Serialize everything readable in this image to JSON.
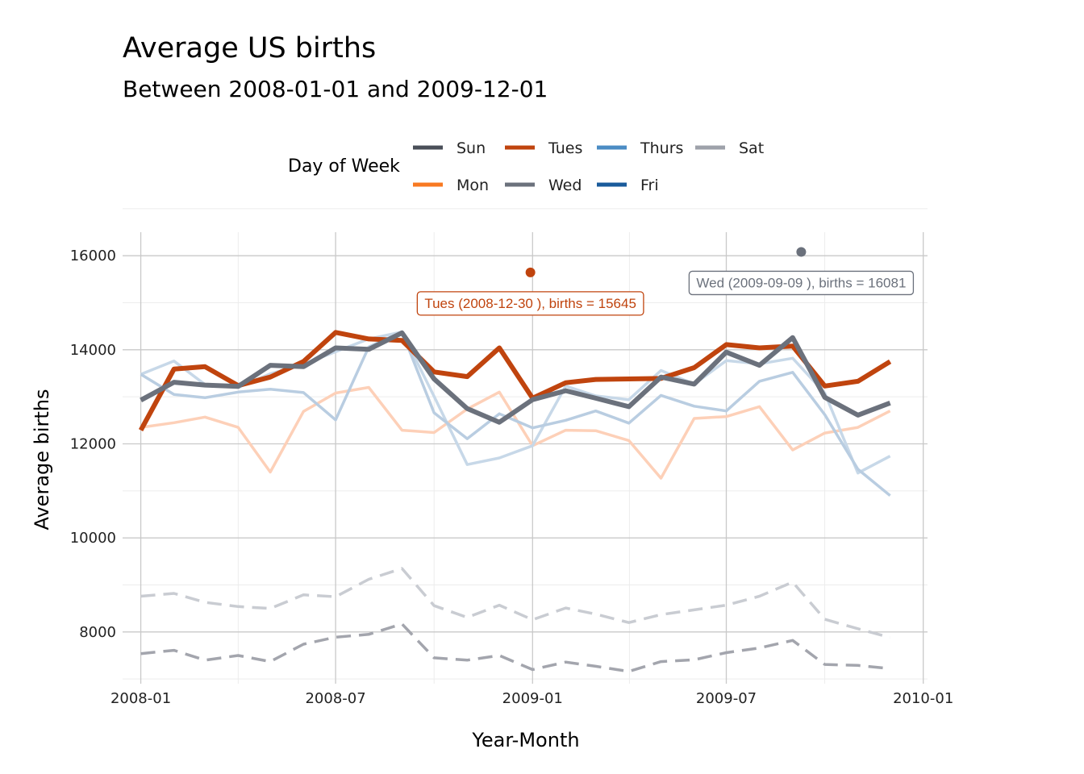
{
  "title": "Average US births",
  "subtitle": "Between 2008-01-01 and 2009-12-01",
  "chart_data": {
    "type": "line",
    "xlabel": "Year-Month",
    "ylabel": "Average births",
    "x_ticks": [
      "2008-01",
      "2008-07",
      "2009-01",
      "2009-07",
      "2010-01"
    ],
    "y_ticks": [
      8000,
      10000,
      12000,
      14000,
      16000
    ],
    "ylim": [
      6900,
      16500
    ],
    "xlim": [
      "2007-12-15",
      "2010-01-05"
    ],
    "grid": true,
    "legend": {
      "title": "Day of Week",
      "placement": "top",
      "entries": [
        "Sun",
        "Mon",
        "Tues",
        "Wed",
        "Thurs",
        "Fri",
        "Sat"
      ]
    },
    "x": [
      "2008-01-01",
      "2008-02-01",
      "2008-03-01",
      "2008-04-01",
      "2008-05-01",
      "2008-06-01",
      "2008-07-01",
      "2008-08-01",
      "2008-09-01",
      "2008-10-01",
      "2008-11-01",
      "2008-12-01",
      "2009-01-01",
      "2009-02-01",
      "2009-03-01",
      "2009-04-01",
      "2009-05-01",
      "2009-06-01",
      "2009-07-01",
      "2009-08-01",
      "2009-09-01",
      "2009-10-01",
      "2009-11-01",
      "2009-12-01"
    ],
    "series": [
      {
        "name": "Sun",
        "color": "#a3a5ad",
        "style": "dashed",
        "values": [
          7540,
          7610,
          7400,
          7500,
          7370,
          7740,
          7890,
          7950,
          8170,
          7450,
          7400,
          7500,
          7200,
          7360,
          7270,
          7160,
          7370,
          7410,
          7560,
          7660,
          7820,
          7310,
          7290,
          7220
        ]
      },
      {
        "name": "Mon",
        "color": "#fdd0b8",
        "style": "solid",
        "values": [
          12350,
          12450,
          12570,
          12350,
          11400,
          12690,
          13080,
          13200,
          12290,
          12240,
          12740,
          13100,
          11960,
          12290,
          12280,
          12070,
          11270,
          12540,
          12580,
          12790,
          11870,
          12230,
          12350,
          12700
        ]
      },
      {
        "name": "Tues",
        "color": "#c0440e",
        "style": "bold",
        "values": [
          12290,
          13590,
          13640,
          13240,
          13420,
          13750,
          14370,
          14230,
          14200,
          13530,
          13430,
          14040,
          12970,
          13300,
          13370,
          13380,
          13390,
          13620,
          14110,
          14040,
          14080,
          13230,
          13330,
          13750
        ]
      },
      {
        "name": "Wed",
        "color": "#6b717c",
        "style": "bold",
        "values": [
          12930,
          13310,
          13250,
          13220,
          13670,
          13640,
          14040,
          14010,
          14360,
          13380,
          12750,
          12460,
          12940,
          13130,
          12970,
          12790,
          13420,
          13270,
          13950,
          13670,
          14260,
          12990,
          12610,
          12870
        ]
      },
      {
        "name": "Thurs",
        "color": "#c7d8e8",
        "style": "solid",
        "values": [
          13480,
          13760,
          13260,
          13200,
          13490,
          13690,
          13960,
          14230,
          14380,
          13010,
          11560,
          11700,
          11960,
          13230,
          13020,
          12940,
          13560,
          13270,
          13770,
          13700,
          13820,
          13080,
          11380,
          11740
        ]
      },
      {
        "name": "Fri",
        "color": "#b9cde1",
        "style": "solid",
        "values": [
          13480,
          13050,
          12980,
          13100,
          13160,
          13090,
          12510,
          14060,
          14380,
          12660,
          12110,
          12640,
          12340,
          12500,
          12700,
          12440,
          13030,
          12800,
          12700,
          13330,
          13520,
          12620,
          11460,
          10900
        ]
      },
      {
        "name": "Sat",
        "color": "#c9ccd2",
        "style": "dashed",
        "values": [
          8760,
          8820,
          8630,
          8540,
          8500,
          8790,
          8750,
          9120,
          9350,
          8560,
          8310,
          8570,
          8260,
          8510,
          8380,
          8200,
          8370,
          8470,
          8570,
          8760,
          9060,
          8270,
          8070,
          7880
        ]
      }
    ],
    "highlights": [
      {
        "series": "Tues",
        "x": "2008-12-30",
        "y": 15645,
        "label": "Tues (2008-12-30 ), births = 15645",
        "color": "#c0440e"
      },
      {
        "series": "Wed",
        "x": "2009-09-09",
        "y": 16081,
        "label": "Wed (2009-09-09 ), births = 16081",
        "color": "#6b717c"
      }
    ]
  }
}
